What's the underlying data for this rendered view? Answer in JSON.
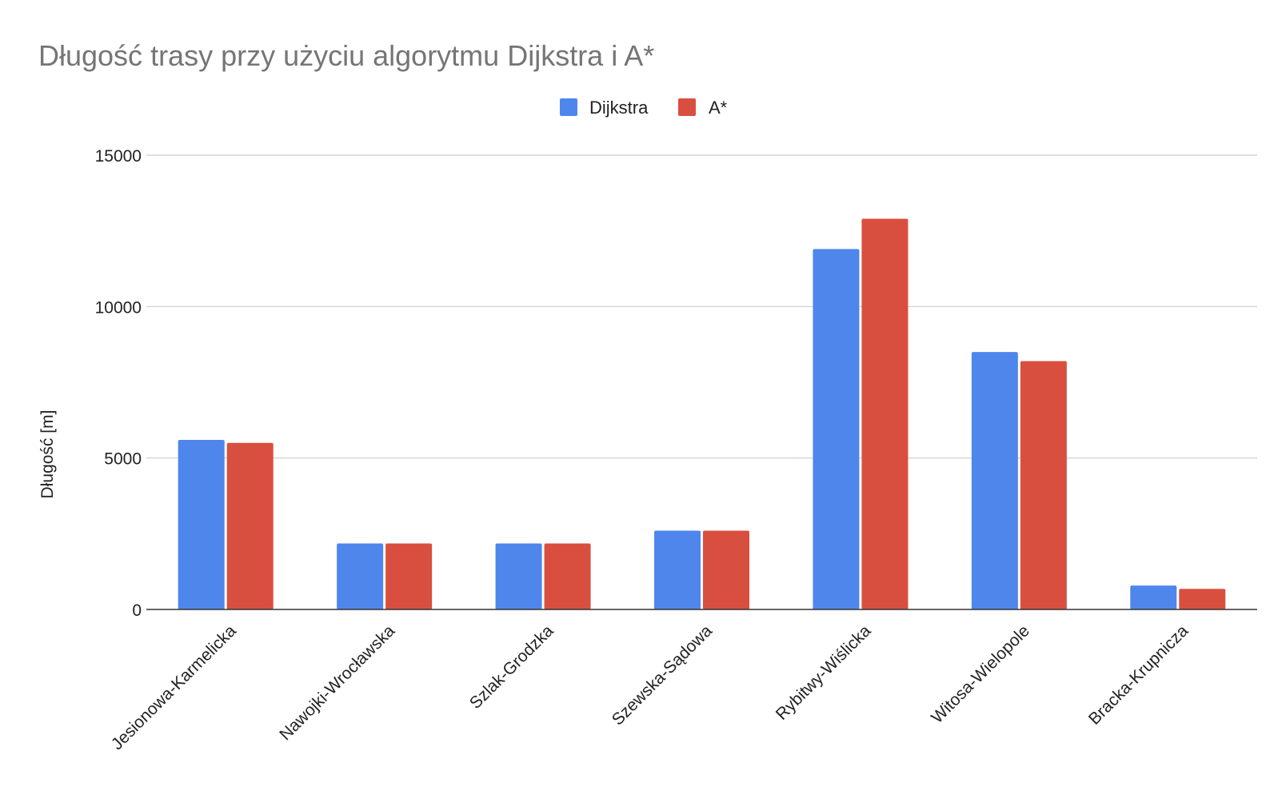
{
  "chart_data": {
    "type": "bar",
    "title": "Długość trasy przy użyciu algorytmu Dijkstra i A*",
    "xlabel": "",
    "ylabel": "Długość [m]",
    "ylim": [
      0,
      15000
    ],
    "yticks": [
      0,
      5000,
      10000,
      15000
    ],
    "grid": true,
    "legend_position": "top-center",
    "categories": [
      "Jesionowa-Karmelicka",
      "Nawojki-Wrocławska",
      "Szlak-Grodzka",
      "Szewska-Sądowa",
      "Rybitwy-Wiślicka",
      "Witosa-Wielopole",
      "Bracka-Krupnicza"
    ],
    "series": [
      {
        "name": "Dijkstra",
        "color": "#4f86ec",
        "values": [
          5600,
          2180,
          2180,
          2600,
          11900,
          8500,
          790
        ]
      },
      {
        "name": "A*",
        "color": "#d94f3f",
        "values": [
          5500,
          2180,
          2180,
          2600,
          12900,
          8200,
          680
        ]
      }
    ]
  }
}
